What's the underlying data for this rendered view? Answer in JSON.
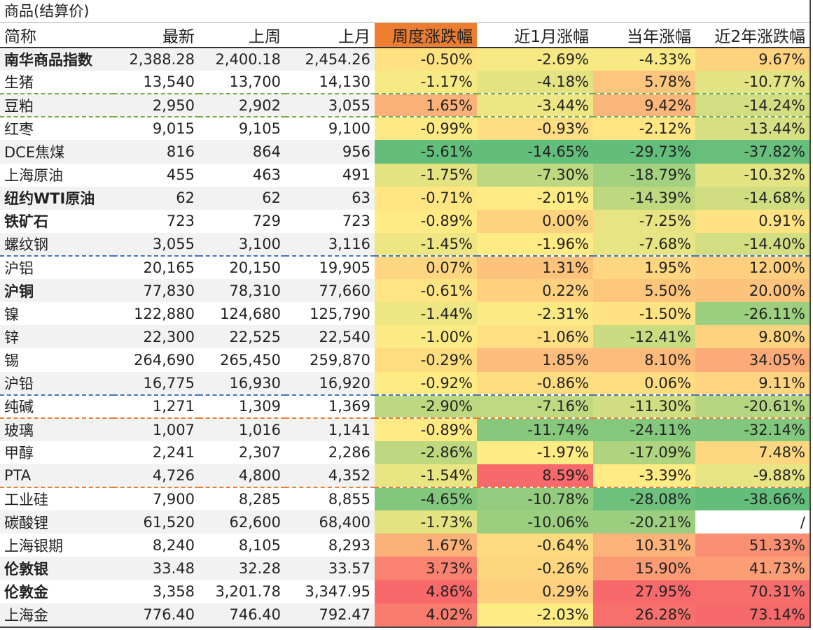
{
  "title": "商品(结算价)",
  "headers": [
    "简称",
    "最新",
    "上周",
    "上月",
    "周度涨跌幅",
    "近1月涨幅",
    "当年涨幅",
    "近2年涨跌幅"
  ],
  "colors": {
    "header_highlight": "#ed7d31",
    "scale_low": "#63be7b",
    "scale_mid": "#ffeb84",
    "scale_high": "#f8696b",
    "separator_green": "#70ad47",
    "separator_blue": "#4472c4",
    "separator_orange": "#ed7d31"
  },
  "rows": [
    {
      "name": "南华商品指数",
      "bold": true,
      "latest": "2,388.28",
      "last_week": "2,400.18",
      "last_month": "2,454.26",
      "weekly": "-0.50%",
      "m1": "-2.69%",
      "ytd": "-4.33%",
      "y2": "9.67%"
    },
    {
      "name": "生猪",
      "bold": false,
      "latest": "13,540",
      "last_week": "13,700",
      "last_month": "14,130",
      "weekly": "-1.17%",
      "m1": "-4.18%",
      "ytd": "5.78%",
      "y2": "-10.77%"
    },
    {
      "name": "豆粕",
      "bold": false,
      "latest": "2,950",
      "last_week": "2,902",
      "last_month": "3,055",
      "weekly": "1.65%",
      "m1": "-3.44%",
      "ytd": "9.42%",
      "y2": "-14.24%"
    },
    {
      "name": "红枣",
      "bold": false,
      "latest": "9,015",
      "last_week": "9,105",
      "last_month": "9,100",
      "weekly": "-0.99%",
      "m1": "-0.93%",
      "ytd": "-2.12%",
      "y2": "-13.44%"
    },
    {
      "name": "DCE焦煤",
      "bold": false,
      "latest": "816",
      "last_week": "864",
      "last_month": "956",
      "weekly": "-5.61%",
      "m1": "-14.65%",
      "ytd": "-29.73%",
      "y2": "-37.82%"
    },
    {
      "name": "上海原油",
      "bold": false,
      "latest": "455",
      "last_week": "463",
      "last_month": "491",
      "weekly": "-1.75%",
      "m1": "-7.30%",
      "ytd": "-18.79%",
      "y2": "-10.32%"
    },
    {
      "name": "纽约WTI原油",
      "bold": true,
      "latest": "62",
      "last_week": "62",
      "last_month": "63",
      "weekly": "-0.71%",
      "m1": "-2.01%",
      "ytd": "-14.39%",
      "y2": "-14.68%"
    },
    {
      "name": "铁矿石",
      "bold": true,
      "latest": "723",
      "last_week": "729",
      "last_month": "723",
      "weekly": "-0.89%",
      "m1": "0.00%",
      "ytd": "-7.25%",
      "y2": "0.91%"
    },
    {
      "name": "螺纹钢",
      "bold": false,
      "latest": "3,055",
      "last_week": "3,100",
      "last_month": "3,116",
      "weekly": "-1.45%",
      "m1": "-1.96%",
      "ytd": "-7.68%",
      "y2": "-14.40%"
    },
    {
      "name": "沪铝",
      "bold": false,
      "latest": "20,165",
      "last_week": "20,150",
      "last_month": "19,905",
      "weekly": "0.07%",
      "m1": "1.31%",
      "ytd": "1.95%",
      "y2": "12.00%"
    },
    {
      "name": "沪铜",
      "bold": true,
      "latest": "77,830",
      "last_week": "78,310",
      "last_month": "77,660",
      "weekly": "-0.61%",
      "m1": "0.22%",
      "ytd": "5.50%",
      "y2": "20.00%"
    },
    {
      "name": "镍",
      "bold": false,
      "latest": "122,880",
      "last_week": "124,680",
      "last_month": "125,790",
      "weekly": "-1.44%",
      "m1": "-2.31%",
      "ytd": "-1.50%",
      "y2": "-26.11%"
    },
    {
      "name": "锌",
      "bold": false,
      "latest": "22,300",
      "last_week": "22,525",
      "last_month": "22,540",
      "weekly": "-1.00%",
      "m1": "-1.06%",
      "ytd": "-12.41%",
      "y2": "9.80%"
    },
    {
      "name": "锡",
      "bold": false,
      "latest": "264,690",
      "last_week": "265,450",
      "last_month": "259,870",
      "weekly": "-0.29%",
      "m1": "1.85%",
      "ytd": "8.10%",
      "y2": "34.05%"
    },
    {
      "name": "沪铅",
      "bold": false,
      "latest": "16,775",
      "last_week": "16,930",
      "last_month": "16,920",
      "weekly": "-0.92%",
      "m1": "-0.86%",
      "ytd": "0.06%",
      "y2": "9.11%"
    },
    {
      "name": "纯碱",
      "bold": false,
      "latest": "1,271",
      "last_week": "1,309",
      "last_month": "1,369",
      "weekly": "-2.90%",
      "m1": "-7.16%",
      "ytd": "-11.30%",
      "y2": "-20.61%"
    },
    {
      "name": "玻璃",
      "bold": false,
      "latest": "1,007",
      "last_week": "1,016",
      "last_month": "1,141",
      "weekly": "-0.89%",
      "m1": "-11.74%",
      "ytd": "-24.11%",
      "y2": "-32.14%"
    },
    {
      "name": "甲醇",
      "bold": false,
      "latest": "2,241",
      "last_week": "2,307",
      "last_month": "2,286",
      "weekly": "-2.86%",
      "m1": "-1.97%",
      "ytd": "-17.09%",
      "y2": "7.48%"
    },
    {
      "name": "PTA",
      "bold": false,
      "latest": "4,726",
      "last_week": "4,800",
      "last_month": "4,352",
      "weekly": "-1.54%",
      "m1": "8.59%",
      "ytd": "-3.39%",
      "y2": "-9.88%"
    },
    {
      "name": "工业硅",
      "bold": false,
      "latest": "7,900",
      "last_week": "8,285",
      "last_month": "8,855",
      "weekly": "-4.65%",
      "m1": "-10.78%",
      "ytd": "-28.08%",
      "y2": "-38.66%"
    },
    {
      "name": "碳酸锂",
      "bold": false,
      "latest": "61,520",
      "last_week": "62,600",
      "last_month": "68,400",
      "weekly": "-1.73%",
      "m1": "-10.06%",
      "ytd": "-20.21%",
      "y2": "/"
    },
    {
      "name": "上海银期",
      "bold": false,
      "latest": "8,240",
      "last_week": "8,105",
      "last_month": "8,293",
      "weekly": "1.67%",
      "m1": "-0.64%",
      "ytd": "10.31%",
      "y2": "51.33%"
    },
    {
      "name": "伦敦银",
      "bold": true,
      "latest": "33.48",
      "last_week": "32.28",
      "last_month": "33.57",
      "weekly": "3.73%",
      "m1": "-0.26%",
      "ytd": "15.90%",
      "y2": "41.73%"
    },
    {
      "name": "伦敦金",
      "bold": true,
      "latest": "3,358",
      "last_week": "3,201.78",
      "last_month": "3,347.95",
      "weekly": "4.86%",
      "m1": "0.29%",
      "ytd": "27.95%",
      "y2": "70.31%"
    },
    {
      "name": "上海金",
      "bold": false,
      "latest": "776.40",
      "last_week": "746.40",
      "last_month": "792.47",
      "weekly": "4.02%",
      "m1": "-2.03%",
      "ytd": "26.28%",
      "y2": "73.14%"
    }
  ],
  "separators": [
    {
      "after_row": 1,
      "style": "green"
    },
    {
      "after_row": 2,
      "style": "green"
    },
    {
      "after_row": 8,
      "style": "blue"
    },
    {
      "after_row": 14,
      "style": "blue"
    },
    {
      "after_row": 15,
      "style": "orange"
    },
    {
      "after_row": 18,
      "style": "orange"
    }
  ]
}
